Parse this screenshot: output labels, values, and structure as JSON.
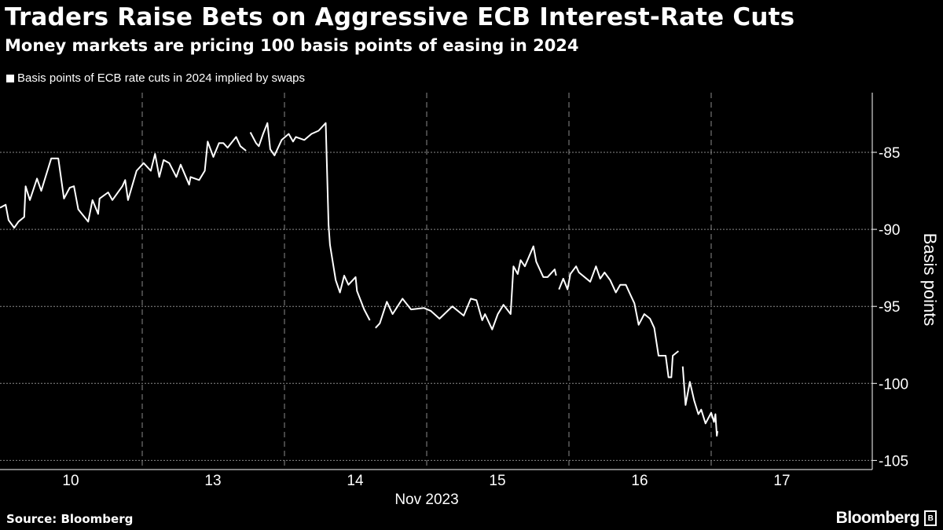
{
  "title": "Traders Raise Bets on Aggressive ECB Interest-Rate Cuts",
  "subtitle": "Money markets are pricing 100 basis points of easing in 2024",
  "source": "Source: Bloomberg",
  "logo": "Bloomberg",
  "colors": {
    "background": "#000000",
    "line": "#ffffff",
    "grid": "#8a8a8a"
  },
  "chart_data": {
    "type": "line",
    "title": "",
    "legend": {
      "position": "top-left",
      "entries": [
        "Basis points of ECB rate cuts in 2024 implied by swaps"
      ]
    },
    "xlabel": "Nov 2023",
    "ylabel": "Basis points",
    "x_tick_labels": [
      "10",
      "13",
      "14",
      "15",
      "16",
      "17"
    ],
    "y_ticks": [
      -85,
      -90,
      -95,
      -100,
      -105
    ],
    "y_tick_labels": [
      "-85",
      "-90",
      "-95",
      "-100",
      "-105"
    ],
    "ylim": [
      -105.6,
      -82.8
    ],
    "y_axis_side": "right",
    "grid": true,
    "x_note": "x = trading day of Nov 2023 plus fraction of that day's session",
    "series": [
      {
        "name": "Basis points of ECB rate cuts in 2024 implied by swaps",
        "segments": [
          [
            [
              10.0,
              -88.6
            ],
            [
              10.04,
              -88.4
            ],
            [
              10.06,
              -89.4
            ],
            [
              10.1,
              -89.9
            ],
            [
              10.13,
              -89.5
            ],
            [
              10.17,
              -89.2
            ],
            [
              10.18,
              -87.2
            ],
            [
              10.21,
              -88.1
            ],
            [
              10.26,
              -86.7
            ],
            [
              10.29,
              -87.5
            ],
            [
              10.32,
              -86.6
            ],
            [
              10.36,
              -85.4
            ],
            [
              10.41,
              -85.4
            ],
            [
              10.45,
              -88.0
            ],
            [
              10.49,
              -87.3
            ],
            [
              10.52,
              -87.2
            ],
            [
              10.55,
              -88.7
            ],
            [
              10.62,
              -89.5
            ],
            [
              10.65,
              -88.1
            ],
            [
              10.69,
              -89.0
            ],
            [
              10.7,
              -88.0
            ],
            [
              10.76,
              -87.6
            ],
            [
              10.79,
              -88.1
            ],
            [
              10.86,
              -87.2
            ],
            [
              10.88,
              -86.8
            ],
            [
              10.9,
              -88.1
            ],
            [
              10.96,
              -86.2
            ],
            [
              13.01,
              -85.7
            ],
            [
              13.06,
              -86.2
            ],
            [
              13.09,
              -85.1
            ],
            [
              13.12,
              -86.6
            ],
            [
              13.15,
              -85.5
            ],
            [
              13.19,
              -85.7
            ],
            [
              13.24,
              -86.6
            ],
            [
              13.27,
              -85.8
            ],
            [
              13.33,
              -87.1
            ],
            [
              13.34,
              -86.6
            ],
            [
              13.4,
              -86.8
            ],
            [
              13.44,
              -86.2
            ],
            [
              13.46,
              -84.3
            ],
            [
              13.5,
              -85.3
            ],
            [
              13.54,
              -84.4
            ],
            [
              13.57,
              -84.4
            ],
            [
              13.6,
              -84.7
            ],
            [
              13.66,
              -84.0
            ],
            [
              13.69,
              -84.6
            ],
            [
              13.73,
              -84.9
            ]
          ],
          [
            [
              13.76,
              -83.7
            ],
            [
              13.8,
              -84.4
            ],
            [
              13.82,
              -84.6
            ],
            [
              13.85,
              -83.8
            ],
            [
              13.88,
              -83.1
            ],
            [
              13.9,
              -84.8
            ],
            [
              13.93,
              -85.2
            ],
            [
              13.98,
              -84.2
            ],
            [
              14.03,
              -83.8
            ],
            [
              14.06,
              -84.3
            ],
            [
              14.08,
              -84.0
            ],
            [
              14.14,
              -84.2
            ],
            [
              14.19,
              -83.8
            ],
            [
              14.24,
              -83.6
            ],
            [
              14.29,
              -83.1
            ],
            [
              14.31,
              -89.7
            ],
            [
              14.32,
              -91.0
            ],
            [
              14.36,
              -93.3
            ],
            [
              14.39,
              -94.1
            ],
            [
              14.42,
              -93.0
            ],
            [
              14.45,
              -93.6
            ],
            [
              14.5,
              -93.1
            ],
            [
              14.51,
              -94.0
            ],
            [
              14.56,
              -95.2
            ],
            [
              14.6,
              -95.9
            ]
          ],
          [
            [
              14.64,
              -96.4
            ],
            [
              14.67,
              -96.1
            ],
            [
              14.72,
              -94.7
            ],
            [
              14.76,
              -95.5
            ],
            [
              14.83,
              -94.5
            ],
            [
              14.89,
              -95.2
            ],
            [
              14.98,
              -95.1
            ],
            [
              15.03,
              -95.3
            ],
            [
              15.09,
              -95.8
            ],
            [
              15.18,
              -95.0
            ],
            [
              15.26,
              -95.6
            ],
            [
              15.31,
              -94.5
            ],
            [
              15.35,
              -94.6
            ],
            [
              15.39,
              -95.9
            ],
            [
              15.41,
              -95.5
            ],
            [
              15.46,
              -96.5
            ],
            [
              15.5,
              -95.5
            ],
            [
              15.54,
              -94.9
            ],
            [
              15.59,
              -95.5
            ],
            [
              15.61,
              -92.4
            ],
            [
              15.64,
              -92.9
            ],
            [
              15.66,
              -92.0
            ],
            [
              15.69,
              -92.4
            ],
            [
              15.75,
              -91.1
            ],
            [
              15.77,
              -92.1
            ],
            [
              15.82,
              -93.1
            ],
            [
              15.85,
              -93.1
            ],
            [
              15.9,
              -92.6
            ],
            [
              15.91,
              -93.0
            ]
          ],
          [
            [
              15.93,
              -93.9
            ],
            [
              15.96,
              -93.2
            ],
            [
              15.99,
              -93.9
            ],
            [
              16.01,
              -92.9
            ],
            [
              16.05,
              -92.4
            ],
            [
              16.07,
              -92.8
            ],
            [
              16.15,
              -93.4
            ],
            [
              16.19,
              -92.4
            ],
            [
              16.22,
              -93.2
            ],
            [
              16.25,
              -92.8
            ],
            [
              16.29,
              -93.3
            ],
            [
              16.33,
              -94.1
            ],
            [
              16.36,
              -93.6
            ],
            [
              16.4,
              -93.6
            ],
            [
              16.43,
              -94.2
            ],
            [
              16.46,
              -94.8
            ],
            [
              16.49,
              -96.2
            ],
            [
              16.53,
              -95.5
            ],
            [
              16.57,
              -95.8
            ],
            [
              16.6,
              -96.4
            ],
            [
              16.63,
              -98.2
            ],
            [
              16.68,
              -98.2
            ],
            [
              16.7,
              -99.6
            ],
            [
              16.72,
              -99.6
            ],
            [
              16.73,
              -98.2
            ],
            [
              16.77,
              -97.9
            ]
          ],
          [
            [
              16.8,
              -98.9
            ],
            [
              16.82,
              -101.4
            ],
            [
              16.85,
              -99.9
            ],
            [
              16.88,
              -101.1
            ],
            [
              16.91,
              -102.0
            ],
            [
              16.93,
              -101.7
            ],
            [
              16.96,
              -102.6
            ],
            [
              17.0,
              -101.9
            ],
            [
              17.02,
              -102.5
            ],
            [
              17.03,
              -102.0
            ],
            [
              17.04,
              -103.4
            ],
            [
              17.045,
              -103.1
            ]
          ]
        ]
      }
    ]
  }
}
